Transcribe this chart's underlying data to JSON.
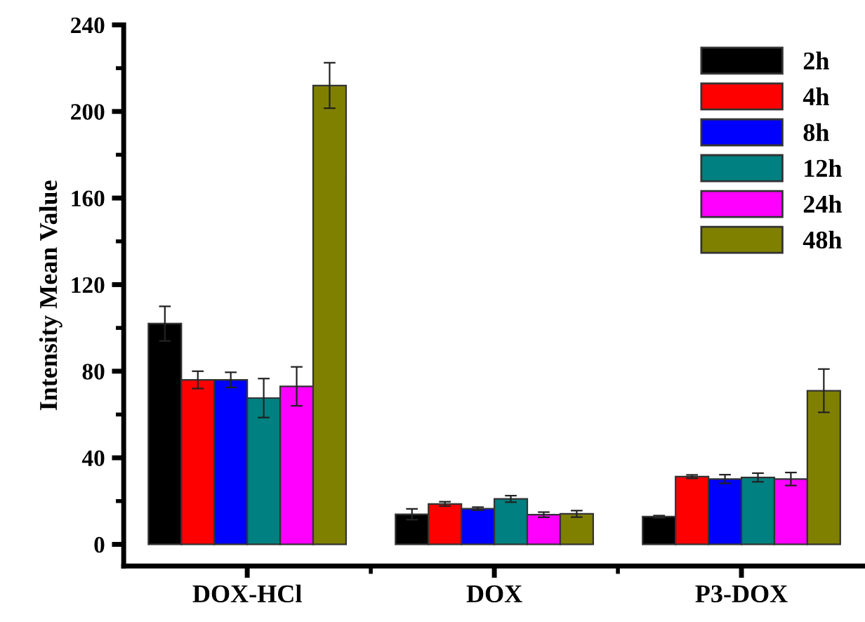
{
  "chart_data": {
    "type": "bar",
    "ylabel": "Intensity Mean Value",
    "categories": [
      "DOX-HCl",
      "DOX",
      "P3-DOX"
    ],
    "series": [
      {
        "name": "2h",
        "color": "#000000",
        "values": [
          102,
          13.9,
          12.8
        ],
        "errors": [
          8,
          2.5,
          0.5
        ]
      },
      {
        "name": "4h",
        "color": "#ff0000",
        "values": [
          76,
          18.7,
          31.3
        ],
        "errors": [
          4,
          1,
          0.8
        ]
      },
      {
        "name": "8h",
        "color": "#0000ff",
        "values": [
          76,
          16.5,
          30.2
        ],
        "errors": [
          3.5,
          0.7,
          2
        ]
      },
      {
        "name": "12h",
        "color": "#008080",
        "values": [
          67.6,
          21,
          30.9
        ],
        "errors": [
          9,
          1.5,
          2
        ]
      },
      {
        "name": "24h",
        "color": "#ff00ff",
        "values": [
          73,
          13.7,
          30.2
        ],
        "errors": [
          9,
          1.2,
          3
        ]
      },
      {
        "name": "48h",
        "color": "#808000",
        "values": [
          212,
          14.1,
          71
        ],
        "errors": [
          10.5,
          1.5,
          10
        ]
      }
    ],
    "ylim": [
      -10,
      240
    ],
    "yticks": [
      0,
      40,
      80,
      120,
      160,
      200,
      240
    ],
    "legend": "top right",
    "grid": false
  }
}
